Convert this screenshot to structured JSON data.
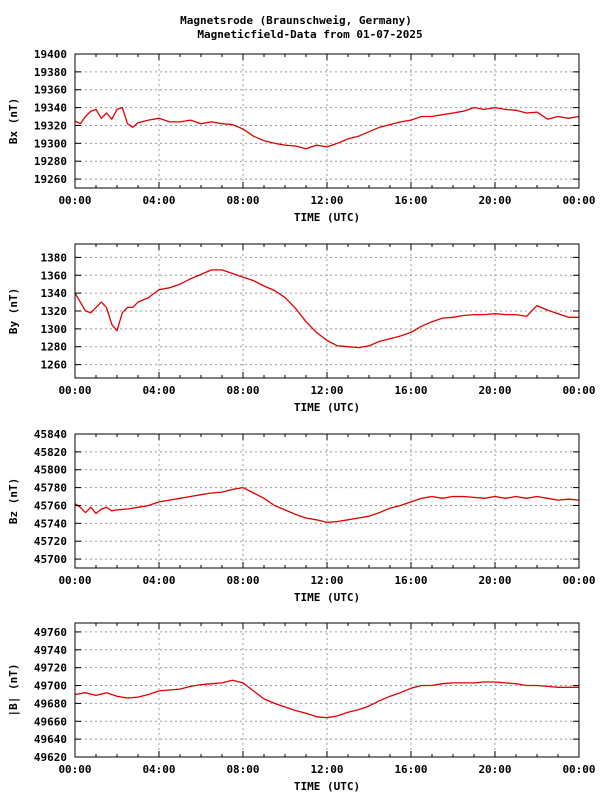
{
  "header": {
    "line1": "Magnetsrode (Braunschweig, Germany)",
    "line2": "Magneticfield-Data from 01-07-2025"
  },
  "colors": {
    "trace": "#e00000",
    "grid": "#999999",
    "axis": "#000000"
  },
  "chart_data": [
    {
      "type": "line",
      "title": "",
      "xlabel": "TIME (UTC)",
      "ylabel": "Bx (nT)",
      "x_ticks": [
        "00:00",
        "04:00",
        "08:00",
        "12:00",
        "16:00",
        "20:00",
        "00:00"
      ],
      "xlim": [
        0,
        24
      ],
      "ylim": [
        19250,
        19400
      ],
      "y_ticks": [
        19260,
        19280,
        19300,
        19320,
        19340,
        19360,
        19380,
        19400
      ],
      "grid": true,
      "series": [
        {
          "x": [
            0,
            0.25,
            0.5,
            0.75,
            1.0,
            1.25,
            1.5,
            1.75,
            2.0,
            2.25,
            2.5,
            2.75,
            3.0,
            3.5,
            4.0,
            4.5,
            5.0,
            5.5,
            6.0,
            6.5,
            7.0,
            7.5,
            8.0,
            8.5,
            9.0,
            9.5,
            10.0,
            10.5,
            11.0,
            11.5,
            12.0,
            12.5,
            13.0,
            13.5,
            14.0,
            14.5,
            15.0,
            15.5,
            16.0,
            16.5,
            17.0,
            17.5,
            18.0,
            18.5,
            19.0,
            19.5,
            20.0,
            20.5,
            21.0,
            21.5,
            22.0,
            22.5,
            23.0,
            23.5,
            24.0
          ],
          "values": [
            19325,
            19322,
            19330,
            19336,
            19338,
            19328,
            19334,
            19327,
            19338,
            19340,
            19322,
            19318,
            19323,
            19326,
            19328,
            19324,
            19324,
            19326,
            19322,
            19324,
            19322,
            19321,
            19316,
            19308,
            19303,
            19300,
            19298,
            19297,
            19294,
            19298,
            19296,
            19300,
            19305,
            19308,
            19313,
            19318,
            19321,
            19324,
            19326,
            19330,
            19330,
            19332,
            19334,
            19336,
            19340,
            19338,
            19340,
            19338,
            19337,
            19334,
            19335,
            19327,
            19330,
            19328,
            19330
          ]
        }
      ]
    },
    {
      "type": "line",
      "title": "",
      "xlabel": "TIME (UTC)",
      "ylabel": "By (nT)",
      "x_ticks": [
        "00:00",
        "04:00",
        "08:00",
        "12:00",
        "16:00",
        "20:00",
        "00:00"
      ],
      "xlim": [
        0,
        24
      ],
      "ylim": [
        1245,
        1395
      ],
      "y_ticks": [
        1260,
        1280,
        1300,
        1320,
        1340,
        1360,
        1380
      ],
      "grid": true,
      "series": [
        {
          "x": [
            0,
            0.25,
            0.5,
            0.75,
            1.0,
            1.25,
            1.5,
            1.75,
            2.0,
            2.25,
            2.5,
            2.75,
            3.0,
            3.5,
            4.0,
            4.5,
            5.0,
            5.5,
            6.0,
            6.5,
            7.0,
            7.5,
            8.0,
            8.5,
            9.0,
            9.5,
            10.0,
            10.5,
            11.0,
            11.5,
            12.0,
            12.5,
            13.0,
            13.5,
            14.0,
            14.5,
            15.0,
            15.5,
            16.0,
            16.5,
            17.0,
            17.5,
            18.0,
            18.5,
            19.0,
            19.5,
            20.0,
            20.5,
            21.0,
            21.5,
            22.0,
            22.5,
            23.0,
            23.5,
            24.0
          ],
          "values": [
            1340,
            1330,
            1320,
            1318,
            1324,
            1330,
            1324,
            1305,
            1298,
            1318,
            1324,
            1324,
            1330,
            1335,
            1344,
            1346,
            1350,
            1356,
            1361,
            1366,
            1366,
            1362,
            1358,
            1354,
            1348,
            1343,
            1335,
            1323,
            1308,
            1296,
            1287,
            1281,
            1280,
            1279,
            1281,
            1286,
            1289,
            1292,
            1296,
            1303,
            1308,
            1312,
            1313,
            1315,
            1316,
            1316,
            1317,
            1316,
            1316,
            1314,
            1326,
            1321,
            1317,
            1313,
            1313
          ]
        }
      ]
    },
    {
      "type": "line",
      "title": "",
      "xlabel": "TIME (UTC)",
      "ylabel": "Bz (nT)",
      "x_ticks": [
        "00:00",
        "04:00",
        "08:00",
        "12:00",
        "16:00",
        "20:00",
        "00:00"
      ],
      "xlim": [
        0,
        24
      ],
      "ylim": [
        45690,
        45840
      ],
      "y_ticks": [
        45700,
        45720,
        45740,
        45760,
        45780,
        45800,
        45820,
        45840
      ],
      "grid": true,
      "series": [
        {
          "x": [
            0,
            0.25,
            0.5,
            0.75,
            1.0,
            1.25,
            1.5,
            1.75,
            2.0,
            2.5,
            3.0,
            3.5,
            4.0,
            4.5,
            5.0,
            5.5,
            6.0,
            6.5,
            7.0,
            7.5,
            8.0,
            8.5,
            9.0,
            9.5,
            10.0,
            10.5,
            11.0,
            11.5,
            12.0,
            12.5,
            13.0,
            13.5,
            14.0,
            14.5,
            15.0,
            15.5,
            16.0,
            16.5,
            17.0,
            17.5,
            18.0,
            18.5,
            19.0,
            19.5,
            20.0,
            20.5,
            21.0,
            21.5,
            22.0,
            22.5,
            23.0,
            23.5,
            24.0
          ],
          "values": [
            45762,
            45758,
            45752,
            45758,
            45751,
            45756,
            45758,
            45754,
            45755,
            45756,
            45758,
            45760,
            45764,
            45766,
            45768,
            45770,
            45772,
            45774,
            45775,
            45778,
            45780,
            45774,
            45768,
            45760,
            45755,
            45750,
            45746,
            45744,
            45741,
            45742,
            45744,
            45746,
            45748,
            45752,
            45757,
            45760,
            45764,
            45768,
            45770,
            45768,
            45770,
            45770,
            45769,
            45768,
            45770,
            45768,
            45770,
            45768,
            45770,
            45768,
            45766,
            45767,
            45766
          ]
        }
      ]
    },
    {
      "type": "line",
      "title": "",
      "xlabel": "TIME (UTC)",
      "ylabel": "|B| (nT)",
      "x_ticks": [
        "00:00",
        "04:00",
        "08:00",
        "12:00",
        "16:00",
        "20:00",
        "00:00"
      ],
      "xlim": [
        0,
        24
      ],
      "ylim": [
        49620,
        49770
      ],
      "y_ticks": [
        49620,
        49640,
        49660,
        49680,
        49700,
        49720,
        49740,
        49760
      ],
      "grid": true,
      "series": [
        {
          "x": [
            0,
            0.5,
            1.0,
            1.5,
            2.0,
            2.5,
            3.0,
            3.5,
            4.0,
            4.5,
            5.0,
            5.5,
            6.0,
            6.5,
            7.0,
            7.5,
            8.0,
            8.5,
            9.0,
            9.5,
            10.0,
            10.5,
            11.0,
            11.5,
            12.0,
            12.5,
            13.0,
            13.5,
            14.0,
            14.5,
            15.0,
            15.5,
            16.0,
            16.5,
            17.0,
            17.5,
            18.0,
            18.5,
            19.0,
            19.5,
            20.0,
            20.5,
            21.0,
            21.5,
            22.0,
            22.5,
            23.0,
            23.5,
            24.0
          ],
          "values": [
            49690,
            49692,
            49689,
            49692,
            49688,
            49686,
            49687,
            49690,
            49694,
            49695,
            49696,
            49699,
            49701,
            49702,
            49703,
            49706,
            49703,
            49694,
            49685,
            49680,
            49676,
            49672,
            49669,
            49665,
            49664,
            49666,
            49670,
            49673,
            49677,
            49683,
            49688,
            49692,
            49697,
            49700,
            49700,
            49702,
            49703,
            49703,
            49703,
            49704,
            49704,
            49703,
            49702,
            49700,
            49700,
            49699,
            49698,
            49698,
            49698
          ]
        }
      ]
    }
  ]
}
